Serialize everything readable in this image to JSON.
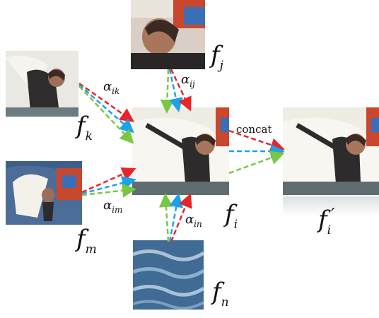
{
  "labels": {
    "fi": {
      "base": "f",
      "sub": "i"
    },
    "fj": {
      "base": "f",
      "sub": "j"
    },
    "fk": {
      "base": "f",
      "sub": "k"
    },
    "fm": {
      "base": "f",
      "sub": "m"
    },
    "fn": {
      "base": "f",
      "sub": "n"
    },
    "fi_prime": {
      "base": "f",
      "sub": "i",
      "mark": "′"
    }
  },
  "weights": {
    "ij": {
      "base": "α",
      "sub": "ij"
    },
    "ik": {
      "base": "α",
      "sub": "ik"
    },
    "im": {
      "base": "α",
      "sub": "im"
    },
    "in": {
      "base": "α",
      "sub": "in"
    }
  },
  "concat_label": "concat",
  "colors": {
    "red": "#e8242a",
    "blue": "#1aa3e8",
    "green": "#79c843"
  }
}
